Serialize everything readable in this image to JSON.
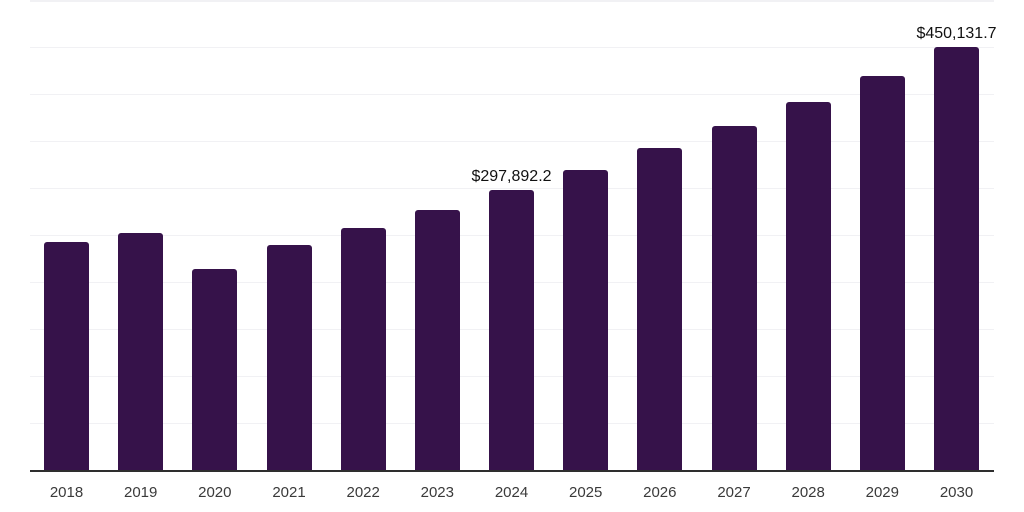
{
  "page": {
    "background": "#ffffff"
  },
  "chart": {
    "bar_color": "#36124a",
    "grid_color": "#f1f1f4",
    "axis_line_color": "#2e2e2e",
    "tick_label_color": "#3a3a3a",
    "data_label_color": "#111111"
  },
  "chart_data": {
    "type": "bar",
    "title": "",
    "xlabel": "",
    "ylabel": "",
    "categories": [
      "2018",
      "2019",
      "2020",
      "2021",
      "2022",
      "2023",
      "2024",
      "2025",
      "2026",
      "2027",
      "2028",
      "2029",
      "2030"
    ],
    "values": [
      242500,
      252100,
      213800,
      239400,
      257400,
      276600,
      297892.2,
      319100,
      342600,
      366000,
      391500,
      419100,
      450131.7
    ],
    "ylim": [
      0,
      500000
    ],
    "gridline_step": 50000,
    "grid": true,
    "legend": false,
    "bar_color": "#36124a",
    "data_labels": [
      {
        "category": "2024",
        "text": "$297,892.2"
      },
      {
        "category": "2030",
        "text": "$450,131.7"
      }
    ]
  }
}
